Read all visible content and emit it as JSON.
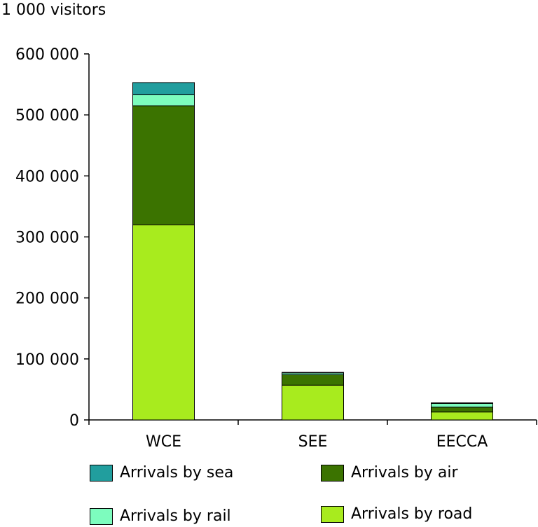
{
  "chart_data": {
    "type": "bar",
    "stacked": true,
    "title": "",
    "ylabel": "1 000 visitors",
    "xlabel": "",
    "ylim": [
      0,
      600000
    ],
    "yticks": [
      0,
      100000,
      200000,
      300000,
      400000,
      500000,
      600000
    ],
    "ytick_labels": [
      "0",
      "100 000",
      "200 000",
      "300 000",
      "400 000",
      "500 000",
      "600 000"
    ],
    "categories": [
      "WCE",
      "SEE",
      "EECCA"
    ],
    "grid": false,
    "legend_position": "bottom",
    "series": [
      {
        "name": "Arrivals by road",
        "color": "#a8eb1e",
        "values": [
          320000,
          57000,
          13000
        ]
      },
      {
        "name": "Arrivals by air",
        "color": "#3b7300",
        "values": [
          195000,
          17000,
          8000
        ]
      },
      {
        "name": "Arrivals by rail",
        "color": "#7dfcbe",
        "values": [
          18000,
          3000,
          6000
        ]
      },
      {
        "name": "Arrivals by sea",
        "color": "#219e9e",
        "values": [
          20000,
          1000,
          1000
        ]
      }
    ]
  }
}
